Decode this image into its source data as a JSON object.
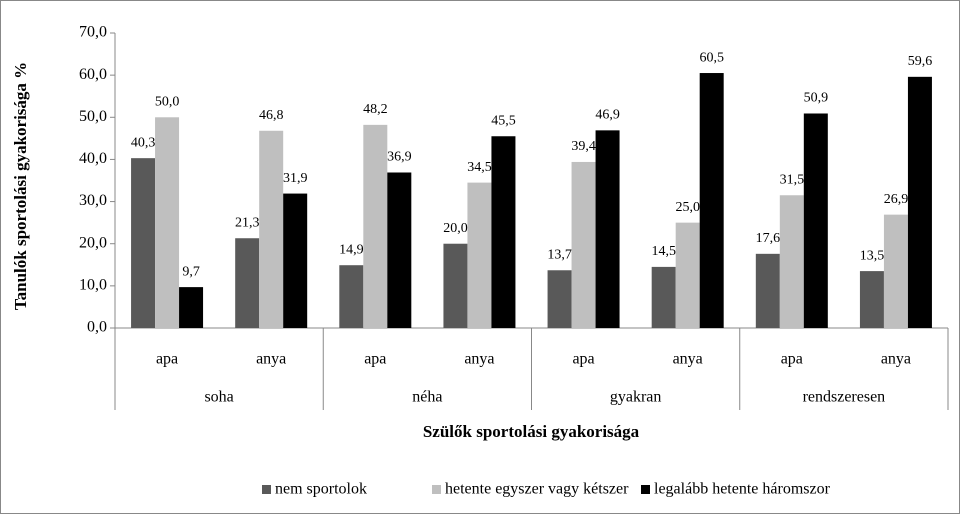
{
  "chart_data": {
    "type": "bar",
    "y_label": "Tanulók sportolási gyakorisága %",
    "x_label": "Szülők sportolási gyakorisága",
    "categories": [
      "apa",
      "anya",
      "apa",
      "anya",
      "apa",
      "anya",
      "apa",
      "anya"
    ],
    "groups": [
      "soha",
      "néha",
      "gyakran",
      "rendszeresen"
    ],
    "series": [
      {
        "name": "nem sportolok",
        "color": "#595959",
        "values": [
          40.3,
          21.3,
          14.9,
          20.0,
          13.7,
          14.5,
          17.6,
          13.5
        ],
        "value_labels": [
          "40,3",
          "21,3",
          "14,9",
          "20,0",
          "13,7",
          "14,5",
          "17,6",
          "13,5"
        ]
      },
      {
        "name": "hetente egyszer vagy kétszer",
        "color": "#bfbfbf",
        "values": [
          50.0,
          46.8,
          48.2,
          34.5,
          39.4,
          25.0,
          31.5,
          26.9
        ],
        "value_labels": [
          "50,0",
          "46,8",
          "48,2",
          "34,5",
          "39,4",
          "25,0",
          "31,5",
          "26,9"
        ]
      },
      {
        "name": "legalább hetente háromszor",
        "color": "#000000",
        "values": [
          9.7,
          31.9,
          36.9,
          45.5,
          46.9,
          60.5,
          50.9,
          59.6
        ],
        "value_labels": [
          "9,7",
          "31,9",
          "36,9",
          "45,5",
          "46,9",
          "60,5",
          "50,9",
          "59,6"
        ]
      }
    ],
    "ylim": [
      0,
      70
    ],
    "yticks": [
      {
        "value": 0,
        "label": "0,0"
      },
      {
        "value": 10,
        "label": "10,0"
      },
      {
        "value": 20,
        "label": "20,0"
      },
      {
        "value": 30,
        "label": "30,0"
      },
      {
        "value": 40,
        "label": "40,0"
      },
      {
        "value": 50,
        "label": "50,0"
      },
      {
        "value": 60,
        "label": "60,0"
      },
      {
        "value": 70,
        "label": "70,0"
      }
    ],
    "grid": false,
    "legend": "bottom"
  }
}
